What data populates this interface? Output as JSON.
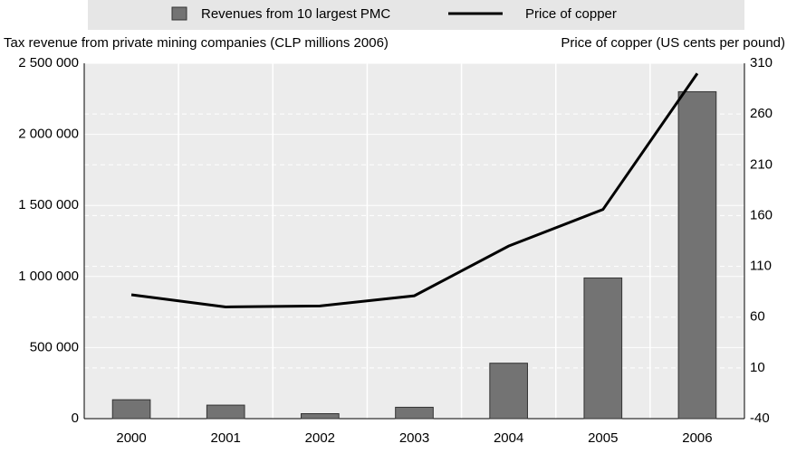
{
  "chart_data": {
    "type": "bar_line",
    "y_label": "Tax revenue from private mining companies (CLP millions 2006)",
    "y2_label": "Price of copper (US cents per pound)",
    "categories": [
      "2000",
      "2001",
      "2002",
      "2003",
      "2004",
      "2005",
      "2006"
    ],
    "series": [
      {
        "name": "Revenues from 10 largest PMC",
        "type": "bar",
        "color": "#737373",
        "values": [
          133000,
          95000,
          35000,
          80000,
          390000,
          990000,
          2300000
        ]
      },
      {
        "name": "Price of copper",
        "type": "line",
        "axis": "y2",
        "color": "#000000",
        "values": [
          82,
          70,
          71,
          81,
          130,
          166,
          300
        ]
      }
    ],
    "ylim": [
      0,
      2500000
    ],
    "yticks": [
      0,
      {
        "value": 500000,
        "label": "500 000"
      },
      {
        "value": 1000000,
        "label": "1 000 000"
      },
      {
        "value": 1500000,
        "label": "1 500 000"
      },
      {
        "value": 2000000,
        "label": "2 000 000"
      },
      {
        "value": 2500000,
        "label": "2 500 000"
      }
    ],
    "y2lim": [
      -40,
      310
    ],
    "y2ticks": [
      -40,
      10,
      60,
      110,
      160,
      210,
      260,
      310
    ],
    "grid": true,
    "legend": "top"
  }
}
